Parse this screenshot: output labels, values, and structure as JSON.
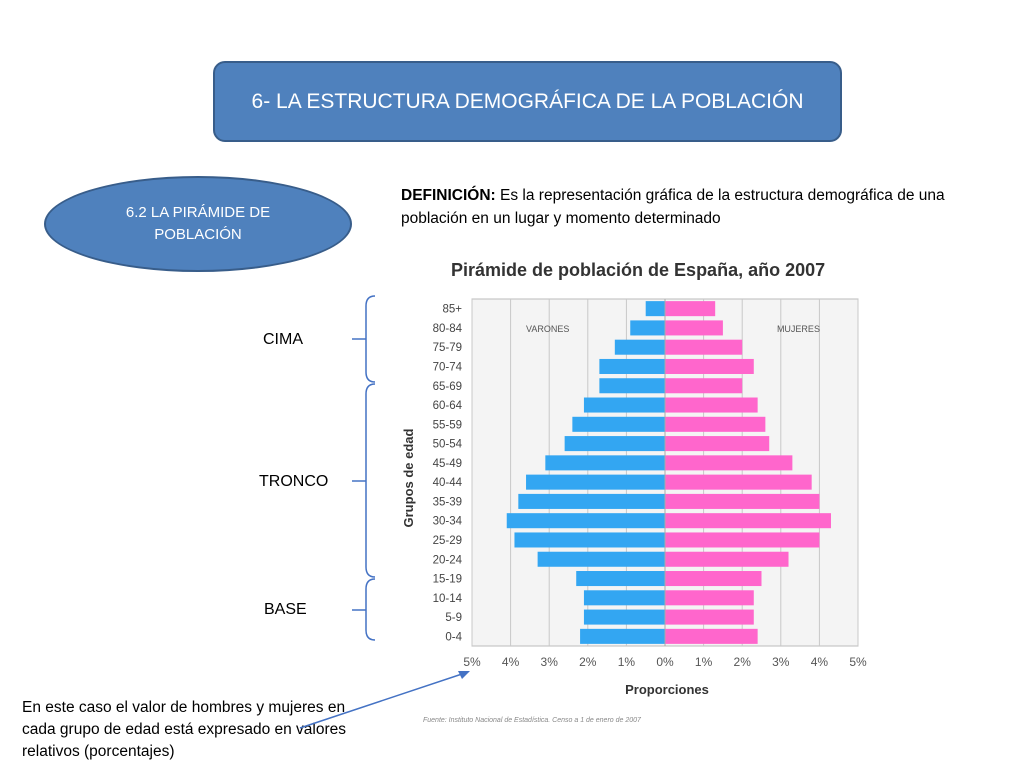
{
  "header": {
    "title": "6- LA ESTRUCTURA DEMOGRÁFICA DE LA POBLACIÓN"
  },
  "section": {
    "line1": "6.2 LA PIRÁMIDE DE",
    "line2": "POBLACIÓN"
  },
  "definition": {
    "term": "DEFINICIÓN:",
    "text": " Es la representación gráfica de la estructura demográfica de una población en un lugar y momento determinado"
  },
  "labels": {
    "cima": "CIMA",
    "tronco": "TRONCO",
    "base": "BASE"
  },
  "note": "En este caso el valor de hombres y mujeres en cada grupo de edad está expresado en valores relativos (porcentajes)",
  "colors": {
    "male": "#33a6f2",
    "female": "#ff66cc",
    "box_fill": "#4f81bd",
    "box_border": "#385d8a",
    "bracket": "#4472c4"
  },
  "chart_data": {
    "type": "bar",
    "title": "Pirámide de población de España, año 2007",
    "xlabel": "Proporciones",
    "ylabel": "Grupos de edad",
    "categories": [
      "85+",
      "80-84",
      "75-79",
      "70-74",
      "65-69",
      "60-64",
      "55-59",
      "50-54",
      "45-49",
      "40-44",
      "35-39",
      "30-34",
      "25-29",
      "20-24",
      "15-19",
      "10-14",
      "5-9",
      "0-4"
    ],
    "series": [
      {
        "name": "VARONES",
        "values": [
          0.5,
          0.9,
          1.3,
          1.7,
          1.7,
          2.1,
          2.4,
          2.6,
          3.1,
          3.6,
          3.8,
          4.1,
          3.9,
          3.3,
          2.3,
          2.1,
          2.1,
          2.2
        ]
      },
      {
        "name": "MUJERES",
        "values": [
          1.3,
          1.5,
          2.0,
          2.3,
          2.0,
          2.4,
          2.6,
          2.7,
          3.3,
          3.8,
          4.0,
          4.3,
          4.0,
          3.2,
          2.5,
          2.3,
          2.3,
          2.4
        ]
      }
    ],
    "xlim": [
      -5,
      5
    ],
    "xticks": [
      "5%",
      "4%",
      "3%",
      "2%",
      "1%",
      "0%",
      "1%",
      "2%",
      "3%",
      "4%",
      "5%"
    ],
    "source": "Fuente: Instituto Nacional de Estadística. Censo a 1 de enero de 2007",
    "grid": true
  }
}
